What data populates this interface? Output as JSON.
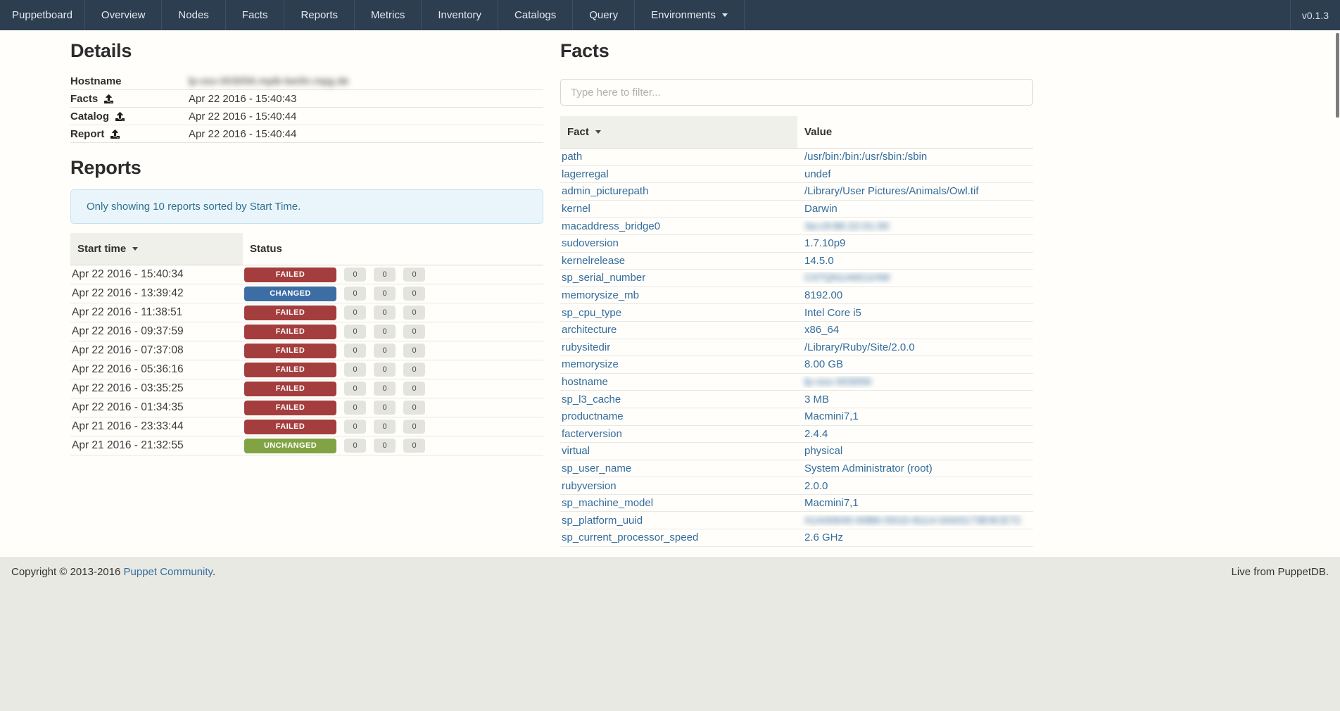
{
  "navbar": {
    "brand": "Puppetboard",
    "items": [
      {
        "label": "Overview"
      },
      {
        "label": "Nodes"
      },
      {
        "label": "Facts"
      },
      {
        "label": "Reports"
      },
      {
        "label": "Metrics"
      },
      {
        "label": "Inventory"
      },
      {
        "label": "Catalogs"
      },
      {
        "label": "Query"
      },
      {
        "label": "Environments",
        "dropdown": true
      }
    ],
    "version": "v0.1.3",
    "background_color": "#2d3e50"
  },
  "details": {
    "title": "Details",
    "rows": [
      {
        "label": "Hostname",
        "value": "lp-osx-003056.mpib-berlin.mpg.de",
        "blurred": true,
        "icon": false
      },
      {
        "label": "Facts",
        "value": "Apr 22 2016 - 15:40:43",
        "blurred": false,
        "icon": true
      },
      {
        "label": "Catalog",
        "value": "Apr 22 2016 - 15:40:44",
        "blurred": false,
        "icon": true
      },
      {
        "label": "Report",
        "value": "Apr 22 2016 - 15:40:44",
        "blurred": false,
        "icon": true
      }
    ]
  },
  "reports": {
    "title": "Reports",
    "notice": "Only showing 10 reports sorted by Start Time.",
    "columns": [
      "Start time",
      "Status"
    ],
    "status_colors": {
      "FAILED": "#a43d3d",
      "CHANGED": "#3c6ea5",
      "UNCHANGED": "#82a343"
    },
    "rows": [
      {
        "start_time": "Apr 22 2016 - 15:40:34",
        "status": "FAILED",
        "counts": [
          "0",
          "0",
          "0"
        ]
      },
      {
        "start_time": "Apr 22 2016 - 13:39:42",
        "status": "CHANGED",
        "counts": [
          "0",
          "0",
          "0"
        ]
      },
      {
        "start_time": "Apr 22 2016 - 11:38:51",
        "status": "FAILED",
        "counts": [
          "0",
          "0",
          "0"
        ]
      },
      {
        "start_time": "Apr 22 2016 - 09:37:59",
        "status": "FAILED",
        "counts": [
          "0",
          "0",
          "0"
        ]
      },
      {
        "start_time": "Apr 22 2016 - 07:37:08",
        "status": "FAILED",
        "counts": [
          "0",
          "0",
          "0"
        ]
      },
      {
        "start_time": "Apr 22 2016 - 05:36:16",
        "status": "FAILED",
        "counts": [
          "0",
          "0",
          "0"
        ]
      },
      {
        "start_time": "Apr 22 2016 - 03:35:25",
        "status": "FAILED",
        "counts": [
          "0",
          "0",
          "0"
        ]
      },
      {
        "start_time": "Apr 22 2016 - 01:34:35",
        "status": "FAILED",
        "counts": [
          "0",
          "0",
          "0"
        ]
      },
      {
        "start_time": "Apr 21 2016 - 23:33:44",
        "status": "FAILED",
        "counts": [
          "0",
          "0",
          "0"
        ]
      },
      {
        "start_time": "Apr 21 2016 - 21:32:55",
        "status": "UNCHANGED",
        "counts": [
          "0",
          "0",
          "0"
        ]
      }
    ]
  },
  "facts": {
    "title": "Facts",
    "filter_placeholder": "Type here to filter...",
    "columns": [
      "Fact",
      "Value"
    ],
    "link_color": "#336c9c",
    "rows": [
      {
        "fact": "path",
        "value": "/usr/bin:/bin:/usr/sbin:/sbin",
        "blurred": false
      },
      {
        "fact": "lagerregal",
        "value": "undef",
        "blurred": false
      },
      {
        "fact": "admin_picturepath",
        "value": "/Library/User Pictures/Animals/Owl.tif",
        "blurred": false
      },
      {
        "fact": "kernel",
        "value": "Darwin",
        "blurred": false
      },
      {
        "fact": "macaddress_bridge0",
        "value": "3a:c9:86:22:01:00",
        "blurred": true
      },
      {
        "fact": "sudoversion",
        "value": "1.7.10p9",
        "blurred": false
      },
      {
        "fact": "kernelrelease",
        "value": "14.5.0",
        "blurred": false
      },
      {
        "fact": "sp_serial_number",
        "value": "C07QN1A6G1HW",
        "blurred": true
      },
      {
        "fact": "memorysize_mb",
        "value": "8192.00",
        "blurred": false
      },
      {
        "fact": "sp_cpu_type",
        "value": "Intel Core i5",
        "blurred": false
      },
      {
        "fact": "architecture",
        "value": "x86_64",
        "blurred": false
      },
      {
        "fact": "rubysitedir",
        "value": "/Library/Ruby/Site/2.0.0",
        "blurred": false
      },
      {
        "fact": "memorysize",
        "value": "8.00 GB",
        "blurred": false
      },
      {
        "fact": "hostname",
        "value": "lp-osx-003056",
        "blurred": true
      },
      {
        "fact": "sp_l3_cache",
        "value": "3 MB",
        "blurred": false
      },
      {
        "fact": "productname",
        "value": "Macmini7,1",
        "blurred": false
      },
      {
        "fact": "facterversion",
        "value": "2.4.4",
        "blurred": false
      },
      {
        "fact": "virtual",
        "value": "physical",
        "blurred": false
      },
      {
        "fact": "sp_user_name",
        "value": "System Administrator (root)",
        "blurred": false
      },
      {
        "fact": "rubyversion",
        "value": "2.0.0",
        "blurred": false
      },
      {
        "fact": "sp_machine_model",
        "value": "Macmini7,1",
        "blurred": false
      },
      {
        "fact": "sp_platform_uuid",
        "value": "41A00640-00B6-591D-8114-0A93173E9CE72",
        "blurred": true
      },
      {
        "fact": "sp_current_processor_speed",
        "value": "2.6 GHz",
        "blurred": false
      }
    ]
  },
  "footer": {
    "copyright_prefix": "Copyright © 2013-2016 ",
    "copyright_link": "Puppet Community",
    "copyright_suffix": ".",
    "live_text": "Live from PuppetDB."
  }
}
